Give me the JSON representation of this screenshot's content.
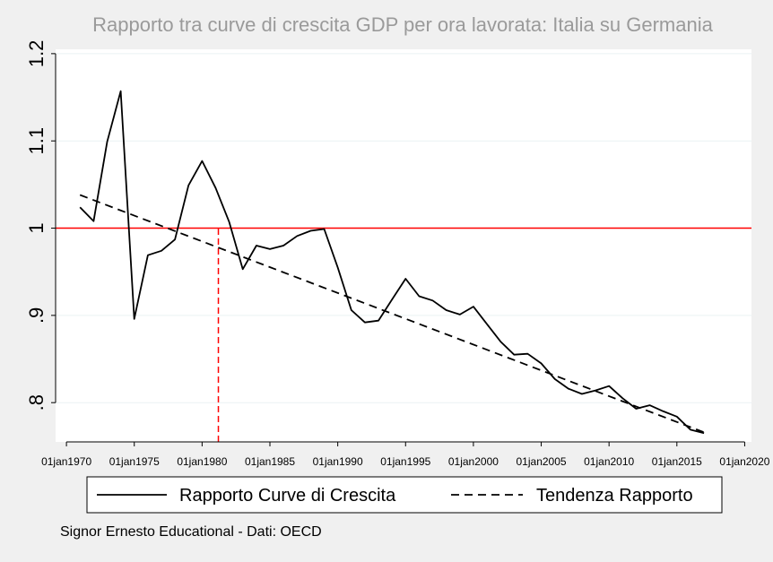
{
  "chart_data": {
    "type": "line",
    "title": "Rapporto tra curve di crescita GDP per ora lavorata: Italia su Germania",
    "xlabel": "",
    "ylabel": "",
    "xlim": [
      1969.2,
      2020.5
    ],
    "ylim": [
      0.755,
      1.205
    ],
    "x_ticks": [
      {
        "value": 1970,
        "label": "01jan1970"
      },
      {
        "value": 1975,
        "label": "01jan1975"
      },
      {
        "value": 1980,
        "label": "01jan1980"
      },
      {
        "value": 1985,
        "label": "01jan1985"
      },
      {
        "value": 1990,
        "label": "01jan1990"
      },
      {
        "value": 1995,
        "label": "01jan1995"
      },
      {
        "value": 2000,
        "label": "01jan2000"
      },
      {
        "value": 2005,
        "label": "01jan2005"
      },
      {
        "value": 2010,
        "label": "01jan2010"
      },
      {
        "value": 2015,
        "label": "01jan2015"
      },
      {
        "value": 2020,
        "label": "01jan2020"
      }
    ],
    "y_ticks": [
      {
        "value": 0.8,
        "label": ".8"
      },
      {
        "value": 0.9,
        "label": ".9"
      },
      {
        "value": 1.0,
        "label": "1"
      },
      {
        "value": 1.1,
        "label": "1.1"
      },
      {
        "value": 1.2,
        "label": "1.2"
      }
    ],
    "grid": true,
    "legend_position": "bottom",
    "series": [
      {
        "name": "Rapporto Curve di Crescita",
        "style": "solid",
        "color": "#000000",
        "x": [
          1971,
          1972,
          1973,
          1974,
          1975,
          1976,
          1977,
          1978,
          1979,
          1980,
          1981,
          1982,
          1983,
          1984,
          1985,
          1986,
          1987,
          1988,
          1989,
          1990,
          1991,
          1992,
          1993,
          1994,
          1995,
          1996,
          1997,
          1998,
          1999,
          2000,
          2001,
          2002,
          2003,
          2004,
          2005,
          2006,
          2007,
          2008,
          2009,
          2010,
          2011,
          2012,
          2013,
          2014,
          2015,
          2016,
          2017
        ],
        "y": [
          1.024,
          1.008,
          1.099,
          1.157,
          0.896,
          0.969,
          0.974,
          0.987,
          1.049,
          1.077,
          1.046,
          1.007,
          0.953,
          0.98,
          0.976,
          0.98,
          0.991,
          0.997,
          0.999,
          0.955,
          0.906,
          0.892,
          0.894,
          0.918,
          0.942,
          0.922,
          0.917,
          0.906,
          0.901,
          0.91,
          0.89,
          0.87,
          0.855,
          0.856,
          0.845,
          0.827,
          0.816,
          0.81,
          0.814,
          0.819,
          0.805,
          0.793,
          0.797,
          0.79,
          0.784,
          0.769,
          0.765
        ]
      },
      {
        "name": "Tendenza Rapporto",
        "style": "dashed",
        "color": "#000000",
        "x": [
          1971,
          2017
        ],
        "y": [
          1.038,
          0.766
        ]
      }
    ],
    "reference_lines": [
      {
        "orientation": "horizontal",
        "value": 1.0,
        "color": "#ff0000",
        "style": "solid"
      },
      {
        "orientation": "vertical",
        "value": 1981.2,
        "to_y": 1.0,
        "color": "#ff0000",
        "style": "dashed"
      }
    ]
  },
  "note": "Signor Ernesto Educational -  Dati: OECD",
  "colors": {
    "background": "#f0f0f0",
    "plot_background": "#ffffff",
    "grid": "#eaf2f3",
    "title": "#9a9a9a"
  }
}
